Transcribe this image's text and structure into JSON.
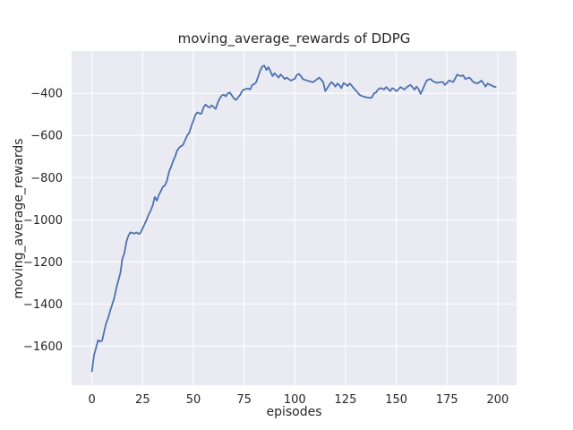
{
  "title": "moving_average_rewards of DDPG",
  "colors": {
    "line": "#4c72b0",
    "plot_background": "#eaeaf2",
    "grid": "#ffffff",
    "text": "#262626",
    "figure_background": "#ffffff"
  },
  "chart_data": {
    "type": "line",
    "title": "moving_average_rewards of DDPG",
    "xlabel": "episodes",
    "ylabel": "moving_average_rewards",
    "legend": "none",
    "grid": true,
    "xlim": [
      -10.0,
      209.3
    ],
    "ylim": [
      -1786,
      -199
    ],
    "x_ticks": [
      0,
      25,
      50,
      75,
      100,
      125,
      150,
      175,
      200
    ],
    "x_tick_labels": [
      "0",
      "25",
      "50",
      "75",
      "100",
      "125",
      "150",
      "175",
      "200"
    ],
    "y_ticks": [
      -400,
      -600,
      -800,
      -1000,
      -1200,
      -1400,
      -1600
    ],
    "y_tick_labels": [
      "−400",
      "−600",
      "−800",
      "−1000",
      "−1200",
      "−1400",
      "−1600"
    ],
    "series": [
      {
        "name": "moving_average_rewards",
        "x_start": 0,
        "x_step": 1,
        "y_values": [
          -1720,
          -1645,
          -1610,
          -1573,
          -1578,
          -1575,
          -1532,
          -1492,
          -1467,
          -1432,
          -1403,
          -1372,
          -1326,
          -1290,
          -1254,
          -1185,
          -1160,
          -1105,
          -1075,
          -1060,
          -1063,
          -1066,
          -1060,
          -1068,
          -1062,
          -1041,
          -1020,
          -999,
          -975,
          -956,
          -930,
          -892,
          -909,
          -882,
          -864,
          -843,
          -837,
          -815,
          -772,
          -750,
          -722,
          -700,
          -672,
          -658,
          -650,
          -644,
          -620,
          -600,
          -587,
          -555,
          -530,
          -502,
          -490,
          -495,
          -497,
          -467,
          -453,
          -462,
          -467,
          -457,
          -465,
          -474,
          -445,
          -424,
          -410,
          -406,
          -414,
          -400,
          -396,
          -410,
          -424,
          -431,
          -420,
          -408,
          -389,
          -382,
          -379,
          -377,
          -382,
          -360,
          -356,
          -346,
          -318,
          -290,
          -272,
          -268,
          -289,
          -275,
          -295,
          -318,
          -304,
          -315,
          -325,
          -310,
          -320,
          -332,
          -325,
          -332,
          -339,
          -335,
          -330,
          -312,
          -308,
          -318,
          -332,
          -336,
          -339,
          -342,
          -344,
          -346,
          -340,
          -332,
          -325,
          -335,
          -346,
          -389,
          -375,
          -360,
          -346,
          -355,
          -368,
          -353,
          -362,
          -375,
          -351,
          -357,
          -365,
          -353,
          -362,
          -375,
          -385,
          -396,
          -408,
          -412,
          -415,
          -418,
          -420,
          -421,
          -419,
          -400,
          -396,
          -382,
          -375,
          -377,
          -382,
          -370,
          -378,
          -389,
          -375,
          -380,
          -389,
          -382,
          -370,
          -375,
          -382,
          -372,
          -365,
          -360,
          -370,
          -382,
          -368,
          -380,
          -403,
          -382,
          -360,
          -339,
          -334,
          -332,
          -342,
          -346,
          -350,
          -348,
          -346,
          -346,
          -360,
          -350,
          -339,
          -342,
          -346,
          -330,
          -311,
          -315,
          -318,
          -314,
          -332,
          -328,
          -325,
          -335,
          -346,
          -350,
          -353,
          -346,
          -339,
          -353,
          -368,
          -353,
          -358,
          -362,
          -368,
          -369
        ]
      }
    ]
  }
}
